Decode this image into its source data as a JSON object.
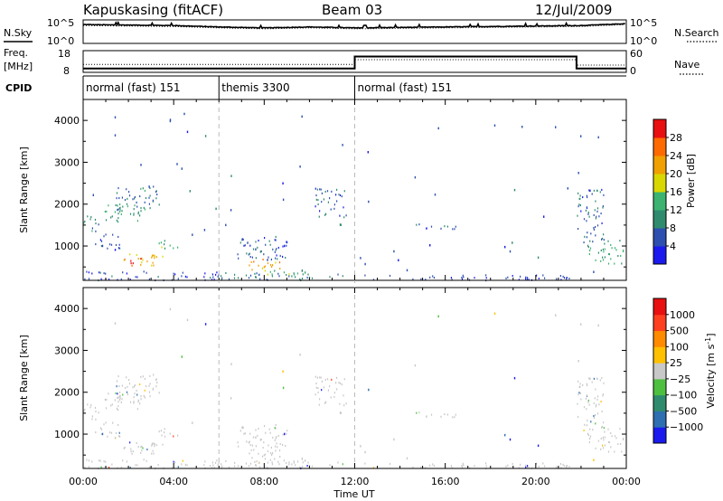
{
  "header": {
    "station": "Kapuskasing (fitACF)",
    "beam": "Beam 03",
    "date": "12/Jul/2009"
  },
  "side_labels": {
    "nsky": "N.Sky",
    "nsearch": "N.Search",
    "freq": "Freq.",
    "mhz": "[MHz]",
    "nave": "Nave",
    "cpid": "CPID"
  },
  "noise_axis": {
    "top": "10^5",
    "bottom": "10^0"
  },
  "freq_axis": {
    "left_top": "18",
    "left_bottom": "8",
    "right_top": "60",
    "right_bottom": "0"
  },
  "cpid_segments": [
    {
      "label": "normal (fast) 151",
      "start_hour": 0,
      "end_hour": 6
    },
    {
      "label": "themis 3300",
      "start_hour": 6,
      "end_hour": 12
    },
    {
      "label": "normal (fast) 151",
      "start_hour": 12,
      "end_hour": 24
    }
  ],
  "range_axis": {
    "label": "Slant Range [km]",
    "ticks": [
      "1000",
      "2000",
      "3000",
      "4000"
    ],
    "min": 180,
    "max": 4500
  },
  "time_axis": {
    "label": "Time UT",
    "ticks": [
      "00:00",
      "04:00",
      "08:00",
      "12:00",
      "16:00",
      "20:00",
      "00:00"
    ]
  },
  "power_scale": {
    "label": "Power [dB]",
    "ticks": [
      "4",
      "8",
      "12",
      "16",
      "20",
      "24",
      "28"
    ],
    "colors": [
      "#1a1aee",
      "#2d4fb0",
      "#2e8b6e",
      "#3cb371",
      "#d8d800",
      "#f0a000",
      "#ff6a00",
      "#e81010"
    ]
  },
  "velocity_scale": {
    "label": "Velocity [m s",
    "label_sup": "-1",
    "ticks": [
      "1000",
      "500",
      "100",
      "25",
      "−25",
      "−100",
      "−500",
      "−1000"
    ],
    "colors": [
      "#1a1aee",
      "#2d6fb0",
      "#2e8b6e",
      "#4ec040",
      "#c8c8c8",
      "#ffc000",
      "#ff8c00",
      "#ff4020",
      "#e81010"
    ]
  },
  "chart_data": [
    {
      "type": "line",
      "panel": "noise",
      "series": [
        {
          "name": "N.Sky",
          "x_hours": [
            0,
            2,
            4,
            6,
            8,
            10,
            12,
            14,
            16,
            18,
            20,
            22,
            24
          ],
          "log10_values": [
            4.0,
            3.9,
            3.8,
            3.5,
            3.3,
            3.5,
            3.3,
            3.4,
            3.5,
            3.6,
            3.7,
            3.8,
            4.2
          ]
        }
      ]
    },
    {
      "type": "line",
      "panel": "frequency",
      "series": [
        {
          "name": "Freq.",
          "x_hours": [
            0,
            12,
            12,
            21.8,
            21.8,
            24
          ],
          "values_mhz": [
            9.8,
            9.8,
            15.3,
            15.3,
            9.8,
            9.8
          ]
        },
        {
          "name": "Nave",
          "x_hours": [
            0,
            12,
            12,
            21.8,
            21.8,
            24
          ],
          "values": [
            22,
            22,
            35,
            35,
            20,
            20
          ]
        }
      ]
    },
    {
      "type": "heatmap",
      "panel": "power",
      "x_range_hours": [
        0,
        24
      ],
      "y_range_km": [
        180,
        4500
      ],
      "zlim_db": [
        0,
        32
      ],
      "scatter_regions": [
        {
          "t0": 0.0,
          "t1": 0.8,
          "r0": 1350,
          "r1": 1750,
          "db": 9
        },
        {
          "t0": 0.8,
          "t1": 2.6,
          "r0": 1600,
          "r1": 2050,
          "db": 12
        },
        {
          "t0": 1.4,
          "t1": 3.4,
          "r0": 1850,
          "r1": 2450,
          "db": 9
        },
        {
          "t0": 0.4,
          "t1": 1.6,
          "r0": 900,
          "r1": 1300,
          "db": 6
        },
        {
          "t0": 1.6,
          "t1": 3.6,
          "r0": 550,
          "r1": 850,
          "db": 21
        },
        {
          "t0": 1.9,
          "t1": 2.6,
          "r0": 550,
          "r1": 760,
          "db": 28
        },
        {
          "t0": 3.2,
          "t1": 4.2,
          "r0": 900,
          "r1": 1150,
          "db": 14
        },
        {
          "t0": 0.0,
          "t1": 6.0,
          "r0": 200,
          "r1": 420,
          "db": 5
        },
        {
          "t0": 6.0,
          "t1": 11.8,
          "r0": 200,
          "r1": 380,
          "db": 8
        },
        {
          "t0": 7.3,
          "t1": 8.7,
          "r0": 420,
          "r1": 700,
          "db": 22
        },
        {
          "t0": 7.8,
          "t1": 8.4,
          "r0": 480,
          "r1": 620,
          "db": 26
        },
        {
          "t0": 8.0,
          "t1": 10.0,
          "r0": 250,
          "r1": 450,
          "db": 14
        },
        {
          "t0": 6.8,
          "t1": 9.0,
          "r0": 700,
          "r1": 1250,
          "db": 6
        },
        {
          "t0": 10.2,
          "t1": 11.6,
          "r0": 1700,
          "r1": 2400,
          "db": 7
        },
        {
          "t0": 12.0,
          "t1": 21.5,
          "r0": 200,
          "r1": 330,
          "db": 4
        },
        {
          "t0": 14.5,
          "t1": 16.5,
          "r0": 1400,
          "r1": 1550,
          "db": 6
        },
        {
          "t0": 21.8,
          "t1": 23.0,
          "r0": 1100,
          "r1": 2400,
          "db": 7
        },
        {
          "t0": 22.2,
          "t1": 23.9,
          "r0": 600,
          "r1": 1150,
          "db": 12
        }
      ]
    },
    {
      "type": "heatmap",
      "panel": "velocity",
      "x_range_hours": [
        0,
        24
      ],
      "y_range_km": [
        180,
        4500
      ],
      "zlim_ms": [
        -1000,
        1000
      ],
      "note_color": "mostly ground scatter grey"
    }
  ]
}
